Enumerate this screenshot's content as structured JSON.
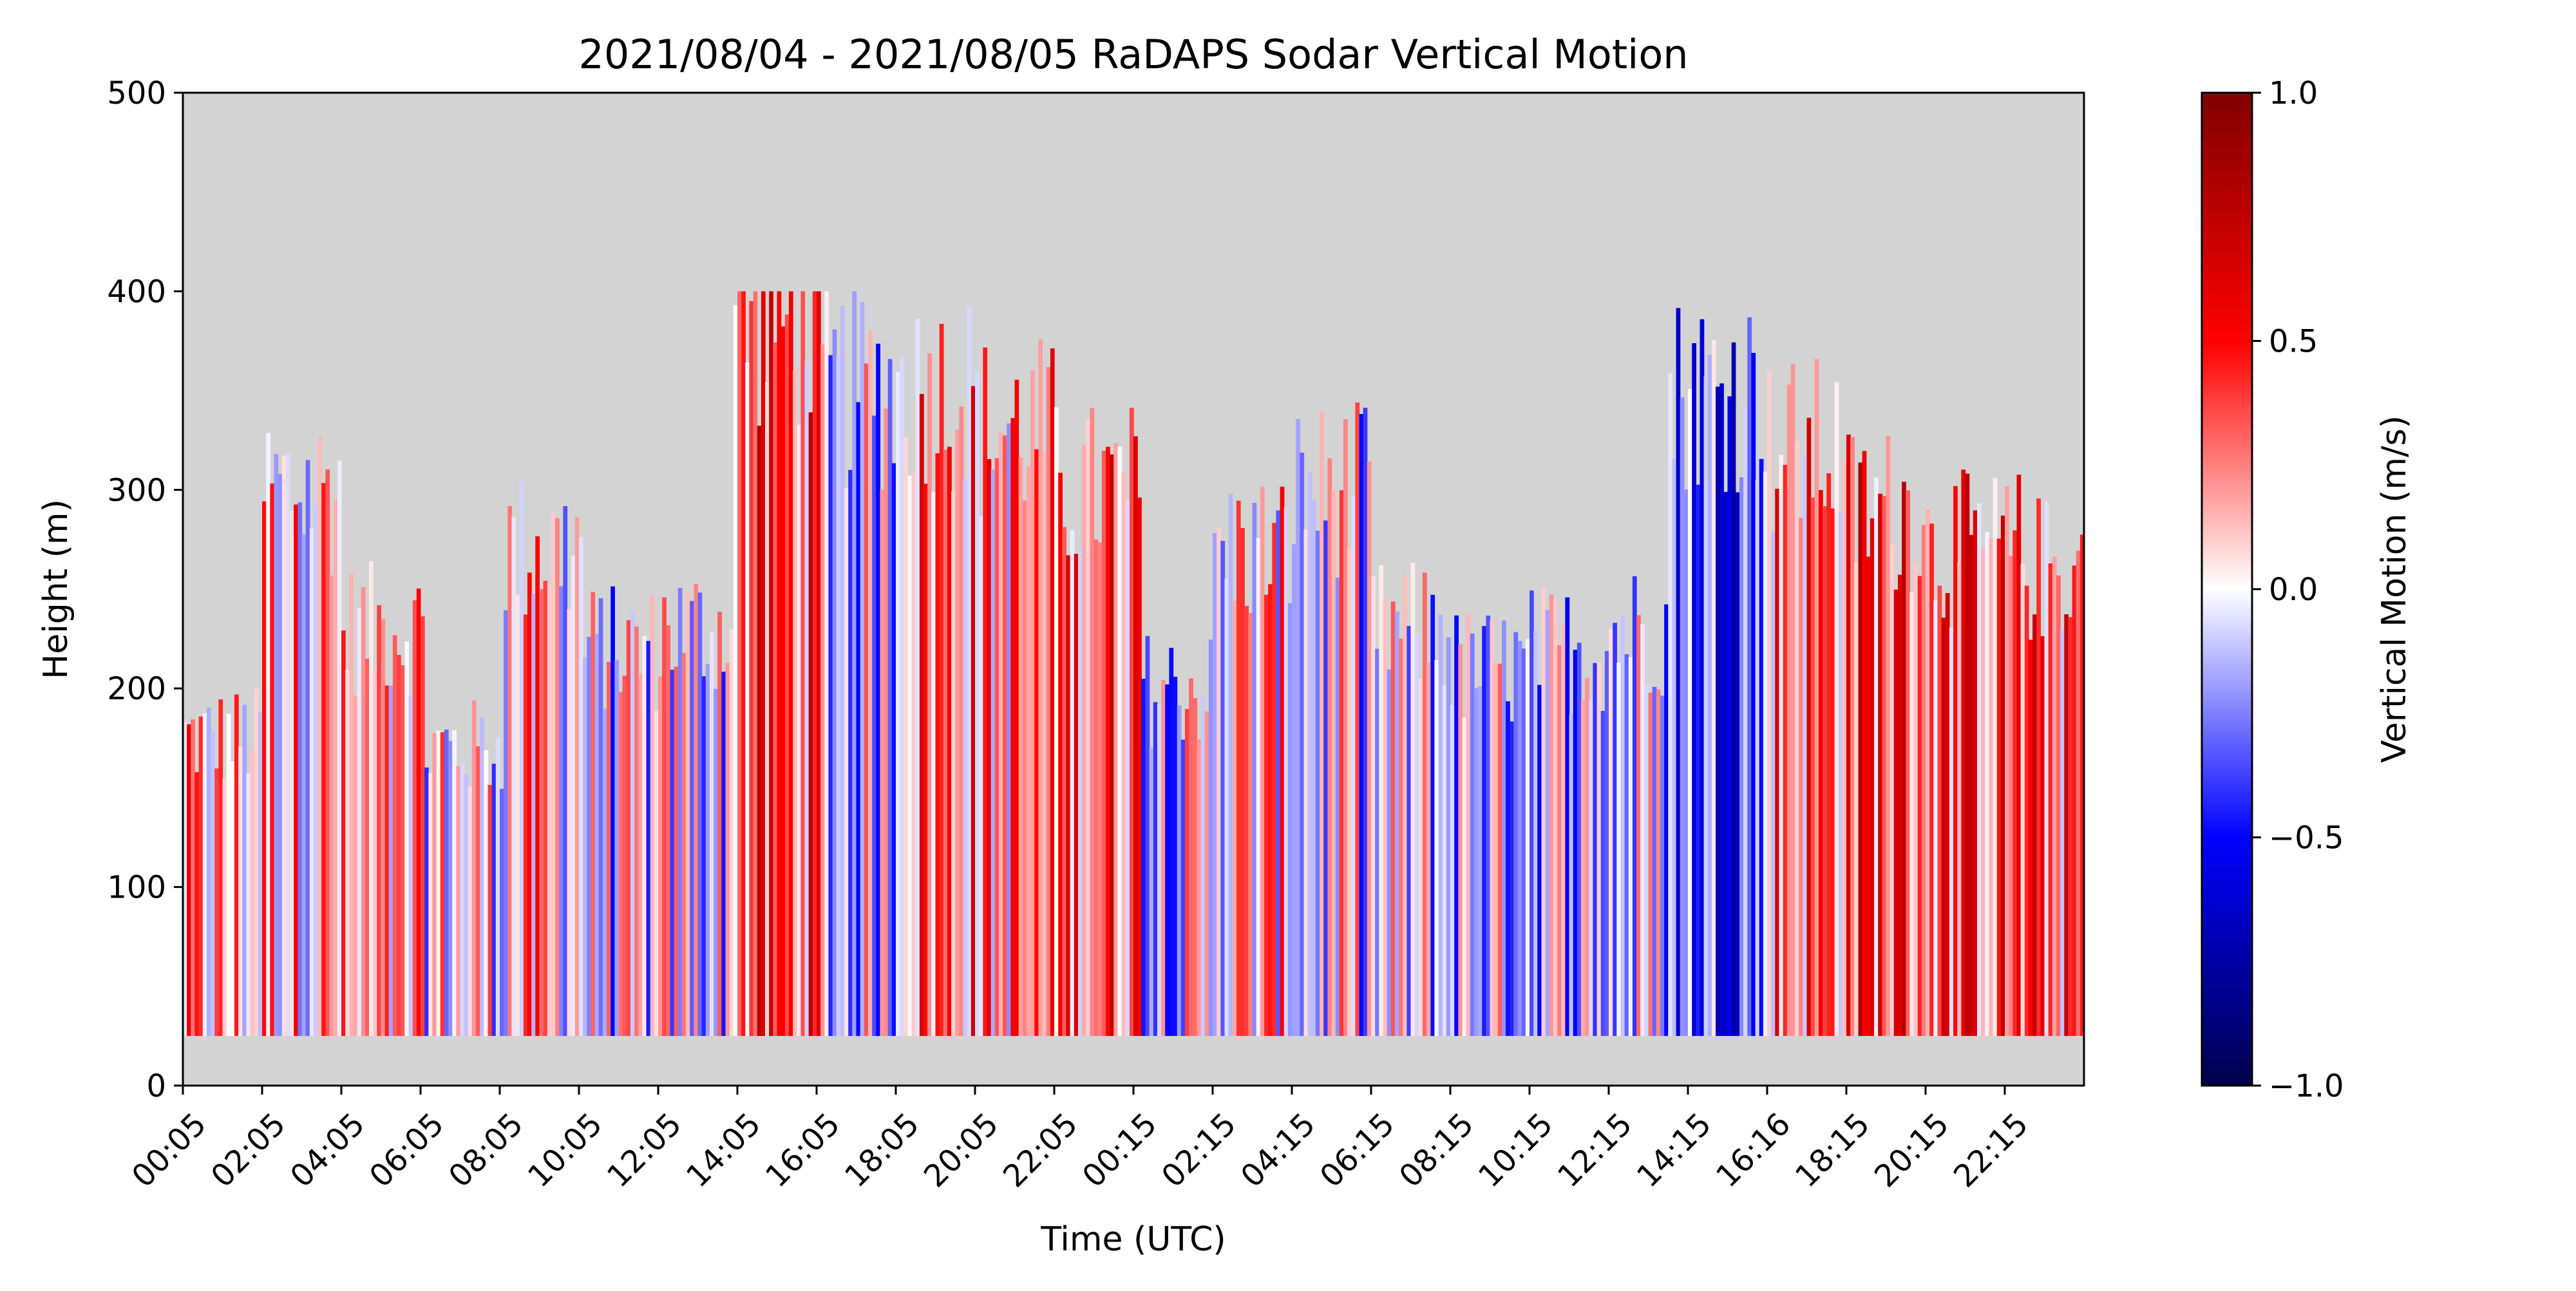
{
  "chart_data": {
    "type": "heatmap",
    "title": "2021/08/04 - 2021/08/05 RaDAPS Sodar Vertical Motion",
    "xlabel": "Time (UTC)",
    "ylabel": "Height (m)",
    "ylim": [
      0,
      500
    ],
    "yticks": [
      "0",
      "100",
      "200",
      "300",
      "400",
      "500"
    ],
    "xtick_labels": [
      "00:05",
      "02:05",
      "04:05",
      "06:05",
      "08:05",
      "10:05",
      "12:05",
      "14:05",
      "16:05",
      "18:05",
      "20:05",
      "22:05",
      "00:15",
      "02:15",
      "04:15",
      "06:15",
      "08:15",
      "10:15",
      "12:15",
      "14:15",
      "16:16",
      "18:15",
      "20:15",
      "22:15"
    ],
    "missing_color": "#d3d3d3",
    "colorbar": {
      "label": "Vertical Motion (m/s)",
      "range": [
        -1.0,
        1.0
      ],
      "ticks": [
        "−1.0",
        "−0.5",
        "0.0",
        "0.5",
        "1.0"
      ],
      "colormap": "seismic",
      "colors": [
        "#00004c",
        "#0000ff",
        "#ffffff",
        "#ff0000",
        "#800000"
      ]
    },
    "data_floor_m": 25,
    "segments": [
      {
        "start": 0.0,
        "end": 2.0,
        "top_m": 175,
        "mean": 0.12
      },
      {
        "start": 2.0,
        "end": 4.0,
        "top_m": 300,
        "mean": 0.15
      },
      {
        "start": 4.0,
        "end": 6.0,
        "top_m": 230,
        "mean": 0.05
      },
      {
        "start": 6.0,
        "end": 8.0,
        "top_m": 170,
        "mean": 0.03
      },
      {
        "start": 8.0,
        "end": 10.0,
        "top_m": 270,
        "mean": 0.08
      },
      {
        "start": 10.0,
        "end": 12.0,
        "top_m": 220,
        "mean": -0.08
      },
      {
        "start": 12.0,
        "end": 13.8,
        "top_m": 230,
        "mean": -0.05
      },
      {
        "start": 13.8,
        "end": 16.0,
        "top_m": 385,
        "mean": 0.35
      },
      {
        "start": 16.0,
        "end": 18.0,
        "top_m": 350,
        "mean": -0.1
      },
      {
        "start": 18.0,
        "end": 20.0,
        "top_m": 350,
        "mean": 0.3
      },
      {
        "start": 20.0,
        "end": 22.0,
        "top_m": 330,
        "mean": 0.2
      },
      {
        "start": 22.0,
        "end": 24.2,
        "top_m": 300,
        "mean": 0.35
      },
      {
        "start": 24.2,
        "end": 26.0,
        "top_m": 200,
        "mean": -0.05
      },
      {
        "start": 26.0,
        "end": 28.0,
        "top_m": 270,
        "mean": 0.1
      },
      {
        "start": 28.0,
        "end": 30.0,
        "top_m": 300,
        "mean": -0.05
      },
      {
        "start": 30.0,
        "end": 32.0,
        "top_m": 230,
        "mean": -0.08
      },
      {
        "start": 32.0,
        "end": 34.0,
        "top_m": 210,
        "mean": -0.1
      },
      {
        "start": 34.0,
        "end": 36.0,
        "top_m": 220,
        "mean": -0.1
      },
      {
        "start": 36.0,
        "end": 37.5,
        "top_m": 230,
        "mean": -0.1
      },
      {
        "start": 37.5,
        "end": 40.0,
        "top_m": 350,
        "mean": -0.3
      },
      {
        "start": 40.0,
        "end": 42.0,
        "top_m": 320,
        "mean": 0.3
      },
      {
        "start": 42.0,
        "end": 44.0,
        "top_m": 290,
        "mean": 0.4
      },
      {
        "start": 44.0,
        "end": 46.5,
        "top_m": 270,
        "mean": 0.35
      },
      {
        "start": 46.5,
        "end": 48.0,
        "top_m": 260,
        "mean": 0.3
      }
    ]
  }
}
